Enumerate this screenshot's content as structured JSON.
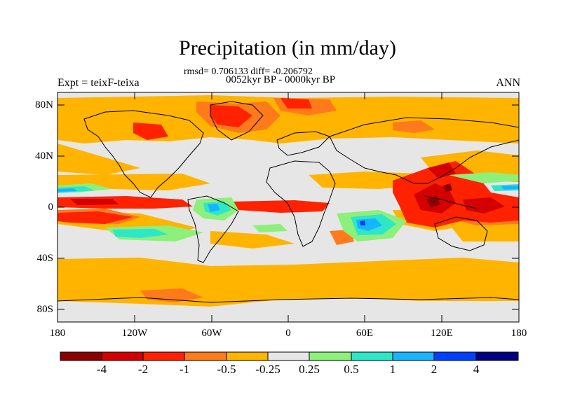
{
  "title": "Precipitation (in mm/day)",
  "stats_line": "rmsd= 0.706133 diff= -0.206792",
  "period_line": "0052kyr BP - 0000kyr BP",
  "experiment_label": "Expt = teixF-teixa",
  "season_label": "ANN",
  "y_tick_labels": [
    "80N",
    "40N",
    "0",
    "40S",
    "80S"
  ],
  "x_tick_labels": [
    "180",
    "120W",
    "60W",
    "0",
    "60E",
    "120E",
    "180"
  ],
  "colorbar": {
    "levels": [
      "-4",
      "-2",
      "-1",
      "-0.5",
      "-0.25",
      "0.25",
      "0.5",
      "1",
      "2",
      "4"
    ],
    "colors": [
      "#8b0000",
      "#d40000",
      "#ff2200",
      "#ff7a1a",
      "#ffb400",
      "#e6e6e6",
      "#8cf07a",
      "#2ee6c8",
      "#18b4ff",
      "#0040ff",
      "#000080"
    ]
  },
  "map_colors": {
    "ocean_neutral": "#e6e6e6",
    "coastline": "#000000"
  }
}
